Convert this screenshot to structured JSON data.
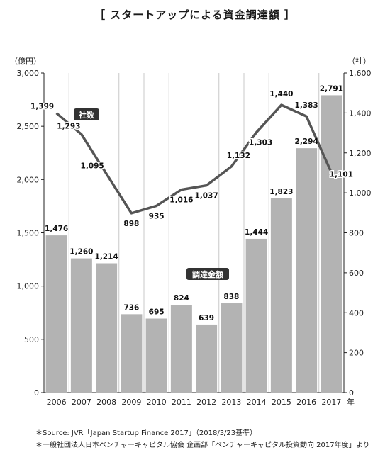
{
  "title": "［ スタートアップによる資金調達額 ］",
  "left_unit": "（億円）",
  "right_unit": "（社）",
  "year_suffix": "年",
  "notes": [
    "＊Source: JVR「Japan Startup Finance 2017」（2018/3/23基準）",
    "＊一般社団法人日本ベンチャーキャピタル協会 企画部「ベンチャーキャピタル投資動向 2017年度」より"
  ],
  "colors": {
    "bar": "#b3b3b3",
    "line": "#555555",
    "grid": "#c8c8c8",
    "axis": "#222222",
    "badge": "#333333"
  },
  "chart_data": {
    "type": "bar",
    "categories": [
      "2006",
      "2007",
      "2008",
      "2009",
      "2010",
      "2011",
      "2012",
      "2013",
      "2014",
      "2015",
      "2016",
      "2017"
    ],
    "series": [
      {
        "name": "調達金額",
        "type": "bar",
        "axis": "left",
        "values": [
          1476,
          1260,
          1214,
          736,
          695,
          824,
          639,
          838,
          1444,
          1823,
          2294,
          2791
        ],
        "labels": [
          "1,476",
          "1,260",
          "1,214",
          "736",
          "695",
          "824",
          "639",
          "838",
          "1,444",
          "1,823",
          "2,294",
          "2,791"
        ]
      },
      {
        "name": "社数",
        "type": "line",
        "axis": "right",
        "values": [
          1399,
          1293,
          1095,
          898,
          935,
          1016,
          1037,
          1132,
          1303,
          1440,
          1383,
          1101
        ],
        "labels": [
          "1,399",
          "1,293",
          "1,095",
          "898",
          "935",
          "1,016",
          "1,037",
          "1,132",
          "1,303",
          "1,440",
          "1,383",
          "1,101"
        ]
      }
    ],
    "left_axis": {
      "ylim": [
        0,
        3000
      ],
      "ticks": [
        0,
        500,
        1000,
        1500,
        2000,
        2500,
        3000
      ],
      "tick_labels": [
        "0",
        "500",
        "1,000",
        "1,500",
        "2,000",
        "2,500",
        "3,000"
      ]
    },
    "right_axis": {
      "ylim": [
        0,
        1600
      ],
      "ticks": [
        0,
        200,
        400,
        600,
        800,
        1000,
        1200,
        1400,
        1600
      ],
      "tick_labels": [
        "0",
        "200",
        "400",
        "600",
        "800",
        "1,000",
        "1,200",
        "1,400",
        "1,600"
      ]
    },
    "legend": "inline labels on chart"
  }
}
